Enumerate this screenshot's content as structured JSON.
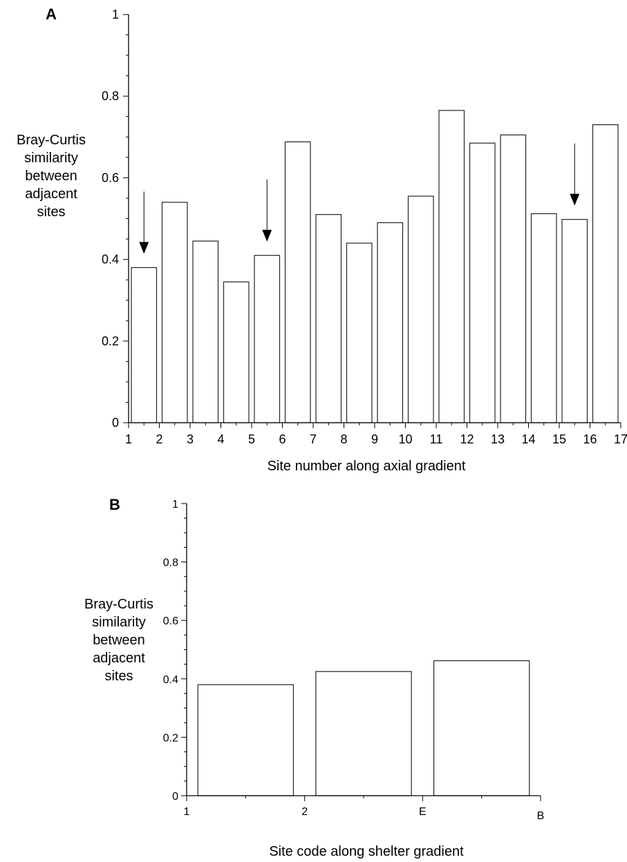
{
  "chart_data": [
    {
      "panel": "A",
      "type": "bar",
      "x": [
        1.5,
        2.5,
        3.5,
        4.5,
        5.5,
        6.5,
        7.5,
        8.5,
        9.5,
        10.5,
        11.5,
        12.5,
        13.5,
        14.5,
        15.5,
        16.5
      ],
      "values": [
        0.38,
        0.54,
        0.445,
        0.345,
        0.41,
        0.688,
        0.51,
        0.44,
        0.49,
        0.555,
        0.765,
        0.685,
        0.705,
        0.512,
        0.498,
        0.73
      ],
      "x_ticks": [
        "1",
        "2",
        "3",
        "4",
        "5",
        "6",
        "7",
        "8",
        "9",
        "10",
        "11",
        "12",
        "13",
        "14",
        "15",
        "16",
        "17"
      ],
      "y_ticks": [
        "0",
        "0.2",
        "0.4",
        "0.6",
        "0.8",
        "1"
      ],
      "ylim": [
        0,
        1
      ],
      "xlim": [
        1,
        17
      ],
      "xlabel": "Site number along axial gradient",
      "ylabel_lines": [
        "Bray-Curtis",
        "similarity",
        "between",
        "adjacent",
        "sites"
      ],
      "arrows_at_x": [
        1.5,
        5.5,
        15.5
      ],
      "grid": false
    },
    {
      "panel": "B",
      "type": "bar",
      "categories_ticks": [
        "1",
        "2",
        "E",
        "B"
      ],
      "values": [
        0.38,
        0.425,
        0.462
      ],
      "y_ticks": [
        "0",
        "0.2",
        "0.4",
        "0.6",
        "0.8",
        "1"
      ],
      "ylim": [
        0,
        1
      ],
      "xlabel": "Site code along shelter gradient",
      "ylabel_lines": [
        "Bray-Curtis",
        "similarity",
        "between",
        "adjacent",
        "sites"
      ],
      "grid": false
    }
  ]
}
